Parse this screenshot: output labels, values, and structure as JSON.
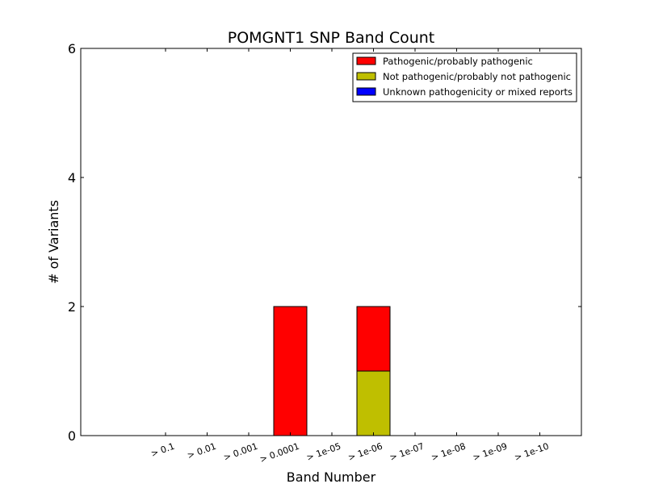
{
  "chart_data": {
    "type": "bar",
    "stacked": true,
    "title": "POMGNT1 SNP Band Count",
    "xlabel": "Band Number",
    "ylabel": "# of Variants",
    "ylim": [
      0,
      6
    ],
    "yticks": [
      "0",
      "2",
      "4",
      "6"
    ],
    "categories": [
      "> 0.1",
      "> 0.01",
      "> 0.001",
      "> 0.0001",
      "> 1e-05",
      "> 1e-06",
      "> 1e-07",
      "> 1e-08",
      "> 1e-09",
      "> 1e-10"
    ],
    "legend_position": "top-right",
    "grid": false,
    "series": [
      {
        "name": "Not pathogenic/probably not pathogenic",
        "color": "#bfbf00",
        "values": [
          0,
          0,
          0,
          0,
          0,
          1,
          0,
          0,
          0,
          0
        ]
      },
      {
        "name": "Pathogenic/probably pathogenic",
        "color": "#ff0000",
        "values": [
          0,
          0,
          0,
          2,
          0,
          1,
          0,
          0,
          0,
          0
        ]
      },
      {
        "name": "Unknown pathogenicity or mixed reports",
        "color": "#0000ff",
        "values": [
          0,
          0,
          0,
          0,
          0,
          0,
          0,
          0,
          0,
          0
        ]
      }
    ],
    "legend_order": [
      "Pathogenic/probably pathogenic",
      "Not pathogenic/probably not pathogenic",
      "Unknown pathogenicity or mixed reports"
    ]
  }
}
